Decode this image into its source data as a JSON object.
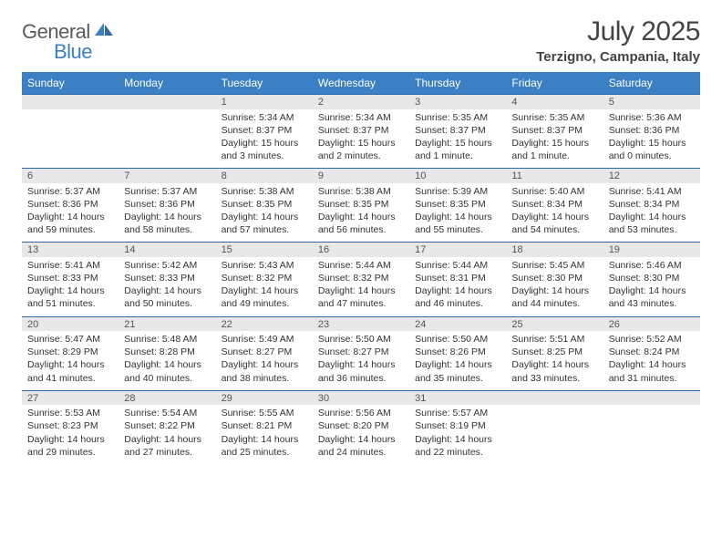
{
  "logo": {
    "word1": "General",
    "word2": "Blue"
  },
  "title": "July 2025",
  "location": "Terzigno, Campania, Italy",
  "colors": {
    "header_bg": "#3b7fc4",
    "header_text": "#ffffff",
    "daynum_bg": "#e8e8e8",
    "border": "#2e6aa8",
    "text": "#333333",
    "title_text": "#444444"
  },
  "day_headers": [
    "Sunday",
    "Monday",
    "Tuesday",
    "Wednesday",
    "Thursday",
    "Friday",
    "Saturday"
  ],
  "weeks": [
    {
      "nums": [
        "",
        "",
        "1",
        "2",
        "3",
        "4",
        "5"
      ],
      "cells": [
        {
          "empty": true
        },
        {
          "empty": true
        },
        {
          "sunrise": "Sunrise: 5:34 AM",
          "sunset": "Sunset: 8:37 PM",
          "day1": "Daylight: 15 hours",
          "day2": "and 3 minutes."
        },
        {
          "sunrise": "Sunrise: 5:34 AM",
          "sunset": "Sunset: 8:37 PM",
          "day1": "Daylight: 15 hours",
          "day2": "and 2 minutes."
        },
        {
          "sunrise": "Sunrise: 5:35 AM",
          "sunset": "Sunset: 8:37 PM",
          "day1": "Daylight: 15 hours",
          "day2": "and 1 minute."
        },
        {
          "sunrise": "Sunrise: 5:35 AM",
          "sunset": "Sunset: 8:37 PM",
          "day1": "Daylight: 15 hours",
          "day2": "and 1 minute."
        },
        {
          "sunrise": "Sunrise: 5:36 AM",
          "sunset": "Sunset: 8:36 PM",
          "day1": "Daylight: 15 hours",
          "day2": "and 0 minutes."
        }
      ]
    },
    {
      "nums": [
        "6",
        "7",
        "8",
        "9",
        "10",
        "11",
        "12"
      ],
      "cells": [
        {
          "sunrise": "Sunrise: 5:37 AM",
          "sunset": "Sunset: 8:36 PM",
          "day1": "Daylight: 14 hours",
          "day2": "and 59 minutes."
        },
        {
          "sunrise": "Sunrise: 5:37 AM",
          "sunset": "Sunset: 8:36 PM",
          "day1": "Daylight: 14 hours",
          "day2": "and 58 minutes."
        },
        {
          "sunrise": "Sunrise: 5:38 AM",
          "sunset": "Sunset: 8:35 PM",
          "day1": "Daylight: 14 hours",
          "day2": "and 57 minutes."
        },
        {
          "sunrise": "Sunrise: 5:38 AM",
          "sunset": "Sunset: 8:35 PM",
          "day1": "Daylight: 14 hours",
          "day2": "and 56 minutes."
        },
        {
          "sunrise": "Sunrise: 5:39 AM",
          "sunset": "Sunset: 8:35 PM",
          "day1": "Daylight: 14 hours",
          "day2": "and 55 minutes."
        },
        {
          "sunrise": "Sunrise: 5:40 AM",
          "sunset": "Sunset: 8:34 PM",
          "day1": "Daylight: 14 hours",
          "day2": "and 54 minutes."
        },
        {
          "sunrise": "Sunrise: 5:41 AM",
          "sunset": "Sunset: 8:34 PM",
          "day1": "Daylight: 14 hours",
          "day2": "and 53 minutes."
        }
      ]
    },
    {
      "nums": [
        "13",
        "14",
        "15",
        "16",
        "17",
        "18",
        "19"
      ],
      "cells": [
        {
          "sunrise": "Sunrise: 5:41 AM",
          "sunset": "Sunset: 8:33 PM",
          "day1": "Daylight: 14 hours",
          "day2": "and 51 minutes."
        },
        {
          "sunrise": "Sunrise: 5:42 AM",
          "sunset": "Sunset: 8:33 PM",
          "day1": "Daylight: 14 hours",
          "day2": "and 50 minutes."
        },
        {
          "sunrise": "Sunrise: 5:43 AM",
          "sunset": "Sunset: 8:32 PM",
          "day1": "Daylight: 14 hours",
          "day2": "and 49 minutes."
        },
        {
          "sunrise": "Sunrise: 5:44 AM",
          "sunset": "Sunset: 8:32 PM",
          "day1": "Daylight: 14 hours",
          "day2": "and 47 minutes."
        },
        {
          "sunrise": "Sunrise: 5:44 AM",
          "sunset": "Sunset: 8:31 PM",
          "day1": "Daylight: 14 hours",
          "day2": "and 46 minutes."
        },
        {
          "sunrise": "Sunrise: 5:45 AM",
          "sunset": "Sunset: 8:30 PM",
          "day1": "Daylight: 14 hours",
          "day2": "and 44 minutes."
        },
        {
          "sunrise": "Sunrise: 5:46 AM",
          "sunset": "Sunset: 8:30 PM",
          "day1": "Daylight: 14 hours",
          "day2": "and 43 minutes."
        }
      ]
    },
    {
      "nums": [
        "20",
        "21",
        "22",
        "23",
        "24",
        "25",
        "26"
      ],
      "cells": [
        {
          "sunrise": "Sunrise: 5:47 AM",
          "sunset": "Sunset: 8:29 PM",
          "day1": "Daylight: 14 hours",
          "day2": "and 41 minutes."
        },
        {
          "sunrise": "Sunrise: 5:48 AM",
          "sunset": "Sunset: 8:28 PM",
          "day1": "Daylight: 14 hours",
          "day2": "and 40 minutes."
        },
        {
          "sunrise": "Sunrise: 5:49 AM",
          "sunset": "Sunset: 8:27 PM",
          "day1": "Daylight: 14 hours",
          "day2": "and 38 minutes."
        },
        {
          "sunrise": "Sunrise: 5:50 AM",
          "sunset": "Sunset: 8:27 PM",
          "day1": "Daylight: 14 hours",
          "day2": "and 36 minutes."
        },
        {
          "sunrise": "Sunrise: 5:50 AM",
          "sunset": "Sunset: 8:26 PM",
          "day1": "Daylight: 14 hours",
          "day2": "and 35 minutes."
        },
        {
          "sunrise": "Sunrise: 5:51 AM",
          "sunset": "Sunset: 8:25 PM",
          "day1": "Daylight: 14 hours",
          "day2": "and 33 minutes."
        },
        {
          "sunrise": "Sunrise: 5:52 AM",
          "sunset": "Sunset: 8:24 PM",
          "day1": "Daylight: 14 hours",
          "day2": "and 31 minutes."
        }
      ]
    },
    {
      "nums": [
        "27",
        "28",
        "29",
        "30",
        "31",
        "",
        ""
      ],
      "cells": [
        {
          "sunrise": "Sunrise: 5:53 AM",
          "sunset": "Sunset: 8:23 PM",
          "day1": "Daylight: 14 hours",
          "day2": "and 29 minutes."
        },
        {
          "sunrise": "Sunrise: 5:54 AM",
          "sunset": "Sunset: 8:22 PM",
          "day1": "Daylight: 14 hours",
          "day2": "and 27 minutes."
        },
        {
          "sunrise": "Sunrise: 5:55 AM",
          "sunset": "Sunset: 8:21 PM",
          "day1": "Daylight: 14 hours",
          "day2": "and 25 minutes."
        },
        {
          "sunrise": "Sunrise: 5:56 AM",
          "sunset": "Sunset: 8:20 PM",
          "day1": "Daylight: 14 hours",
          "day2": "and 24 minutes."
        },
        {
          "sunrise": "Sunrise: 5:57 AM",
          "sunset": "Sunset: 8:19 PM",
          "day1": "Daylight: 14 hours",
          "day2": "and 22 minutes."
        },
        {
          "empty": true
        },
        {
          "empty": true
        }
      ]
    }
  ]
}
